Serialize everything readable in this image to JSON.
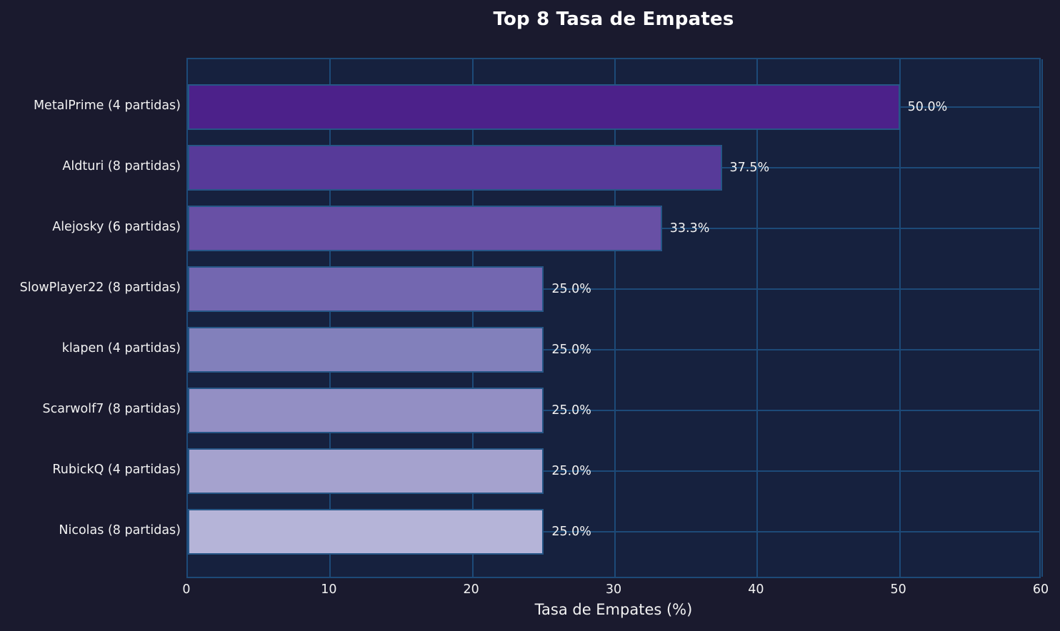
{
  "chart_data": {
    "type": "bar",
    "orientation": "horizontal",
    "title": "Top 8 Tasa de Empates",
    "xlabel": "Tasa de Empates (%)",
    "ylabel": "",
    "xlim": [
      0,
      60
    ],
    "xticks": [
      0,
      10,
      20,
      30,
      40,
      50,
      60
    ],
    "grid": true,
    "legend": false,
    "categories": [
      "MetalPrime (4 partidas)",
      "Aldturi (8 partidas)",
      "Alejosky (6 partidas)",
      "SlowPlayer22 (8 partidas)",
      "klapen (4 partidas)",
      "Scarwolf7 (8 partidas)",
      "RubickQ (4 partidas)",
      "Nicolas (8 partidas)"
    ],
    "values": [
      50.0,
      37.5,
      33.3,
      25.0,
      25.0,
      25.0,
      25.0,
      25.0
    ],
    "value_labels": [
      "50.0%",
      "37.5%",
      "33.3%",
      "25.0%",
      "25.0%",
      "25.0%",
      "25.0%",
      "25.0%"
    ],
    "bar_colors": [
      "#4c218a",
      "#573a99",
      "#6850a5",
      "#7367b0",
      "#8280bb",
      "#938fc4",
      "#a5a2ce",
      "#b5b4d8"
    ]
  },
  "theme": {
    "figure_bg": "#1a1a2e",
    "axes_bg": "#16213e",
    "grid_color": "#1d4a78",
    "spine_color": "#1d4a78",
    "bar_edge_color": "#265686",
    "title_color": "#ffffff",
    "label_color": "#f2f2f2"
  }
}
